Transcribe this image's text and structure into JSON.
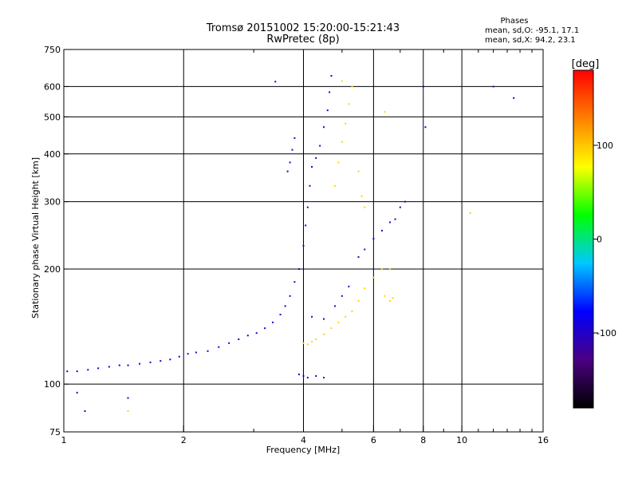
{
  "chart_data": {
    "type": "scatter",
    "title_line1": "Tromsø 20151002 15:20:00-15:21:43",
    "title_line2": "RwPretec (8p)",
    "xlabel": "Frequency [MHz]",
    "ylabel": "Stationary phase Virtual Height [km]",
    "x_scale": "log2",
    "y_scale": "log",
    "xlim": [
      1,
      16
    ],
    "ylim": [
      75,
      750
    ],
    "x_ticks": [
      1,
      2,
      4,
      6,
      8,
      10,
      16
    ],
    "x_minor_ticks": [
      3,
      5,
      7,
      9,
      11,
      12,
      13,
      14,
      15
    ],
    "y_ticks": [
      75,
      100,
      200,
      300,
      400,
      500,
      600,
      750
    ],
    "grid": true,
    "phases_box": {
      "title": "Phases",
      "line_o": "mean, sd,O: -95.1, 17.1",
      "line_x": "mean, sd,X:  94.2, 23.1"
    },
    "colorbar": {
      "label": "[deg]",
      "range": [
        -180,
        180
      ],
      "ticks": [
        100,
        0,
        -100
      ],
      "colormap": [
        "#000000",
        "#4b0082",
        "#0000ff",
        "#00c8ff",
        "#00ff00",
        "#ffff00",
        "#ff8000",
        "#ff0000"
      ]
    },
    "series": [
      {
        "phase": -95.1,
        "points": [
          [
            1.02,
            108
          ],
          [
            1.08,
            108
          ],
          [
            1.15,
            109
          ],
          [
            1.22,
            110
          ],
          [
            1.3,
            111
          ],
          [
            1.38,
            112
          ],
          [
            1.45,
            112
          ],
          [
            1.55,
            113
          ],
          [
            1.65,
            114
          ],
          [
            1.75,
            115
          ],
          [
            1.85,
            116
          ],
          [
            1.95,
            118
          ],
          [
            2.05,
            120
          ],
          [
            2.15,
            121
          ],
          [
            2.3,
            122
          ],
          [
            2.45,
            125
          ],
          [
            2.6,
            128
          ],
          [
            2.75,
            131
          ],
          [
            2.9,
            134
          ],
          [
            3.05,
            136
          ],
          [
            3.2,
            140
          ],
          [
            3.35,
            145
          ],
          [
            3.5,
            152
          ],
          [
            3.6,
            160
          ],
          [
            3.7,
            170
          ],
          [
            3.8,
            185
          ],
          [
            3.9,
            200
          ],
          [
            4.0,
            230
          ],
          [
            4.05,
            260
          ],
          [
            4.1,
            290
          ],
          [
            4.15,
            330
          ],
          [
            4.2,
            370
          ],
          [
            4.3,
            390
          ],
          [
            4.4,
            420
          ],
          [
            4.5,
            470
          ],
          [
            4.6,
            520
          ],
          [
            4.65,
            580
          ],
          [
            4.7,
            640
          ],
          [
            3.7,
            380
          ],
          [
            3.75,
            410
          ],
          [
            3.8,
            440
          ],
          [
            3.65,
            360
          ],
          [
            4.0,
            105
          ],
          [
            4.1,
            104
          ],
          [
            4.3,
            105
          ],
          [
            4.5,
            104
          ],
          [
            3.9,
            106
          ],
          [
            4.2,
            150
          ],
          [
            4.5,
            148
          ],
          [
            4.8,
            160
          ],
          [
            5.0,
            170
          ],
          [
            5.2,
            180
          ],
          [
            5.5,
            215
          ],
          [
            5.7,
            225
          ],
          [
            6.0,
            240
          ],
          [
            6.3,
            252
          ],
          [
            6.6,
            265
          ],
          [
            6.8,
            270
          ],
          [
            7.0,
            290
          ],
          [
            1.08,
            95
          ],
          [
            1.13,
            85
          ],
          [
            1.45,
            92
          ],
          [
            3.4,
            618
          ],
          [
            7.2,
            300
          ],
          [
            8.0,
            600
          ],
          [
            8.1,
            470
          ],
          [
            12.0,
            600
          ],
          [
            13.5,
            560
          ]
        ]
      },
      {
        "phase": 94.2,
        "points": [
          [
            4.0,
            128
          ],
          [
            4.1,
            127
          ],
          [
            4.2,
            129
          ],
          [
            4.3,
            131
          ],
          [
            4.5,
            135
          ],
          [
            4.7,
            140
          ],
          [
            4.9,
            145
          ],
          [
            5.1,
            150
          ],
          [
            5.3,
            155
          ],
          [
            5.5,
            165
          ],
          [
            5.7,
            178
          ],
          [
            6.0,
            190
          ],
          [
            6.3,
            200
          ],
          [
            6.6,
            200
          ],
          [
            4.8,
            330
          ],
          [
            4.9,
            380
          ],
          [
            5.0,
            430
          ],
          [
            5.1,
            480
          ],
          [
            5.2,
            540
          ],
          [
            5.3,
            600
          ],
          [
            5.5,
            360
          ],
          [
            5.6,
            310
          ],
          [
            5.7,
            290
          ],
          [
            6.4,
            170
          ],
          [
            6.6,
            165
          ],
          [
            6.7,
            168
          ],
          [
            10.5,
            280
          ],
          [
            1.45,
            85
          ],
          [
            6.4,
            515
          ],
          [
            5.0,
            620
          ]
        ]
      }
    ]
  }
}
